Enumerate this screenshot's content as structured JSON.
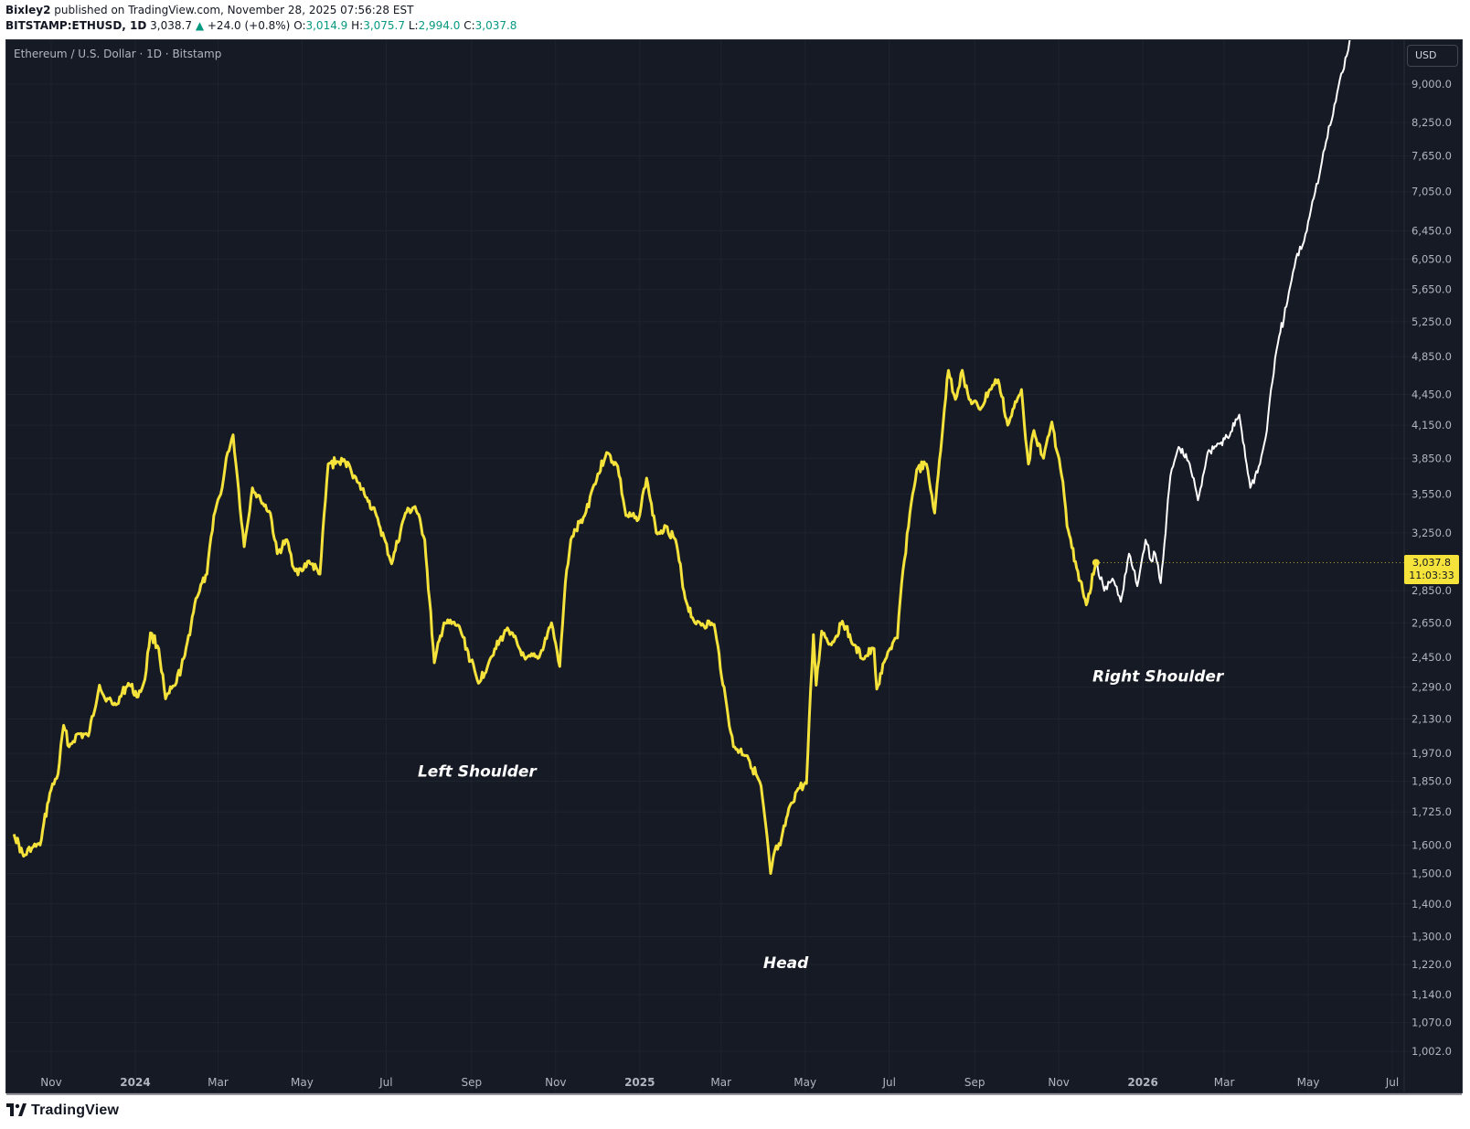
{
  "header": {
    "author": "Bixley2",
    "published_text": "published on TradingView.com, November 28, 2025 07:56:28 EST"
  },
  "ohlc": {
    "symbol": "BITSTAMP:ETHUSD, 1D",
    "last": "3,038.7",
    "change": "+24.0 (+0.8%)",
    "o_label": "O:",
    "o": "3,014.9",
    "h_label": "H:",
    "h": "3,075.7",
    "l_label": "L:",
    "l": "2,994.0",
    "c_label": "C:",
    "c": "3,037.8"
  },
  "legend": {
    "title": "Ethereum / U.S. Dollar · 1D · Bitstamp"
  },
  "currency_button": "USD",
  "price_tag": {
    "price": "3,037.8",
    "countdown": "11:03:33"
  },
  "brand": {
    "name": "TradingView"
  },
  "colors": {
    "background": "#161a25",
    "grid": "#1f232e",
    "history_line": "#f5e33b",
    "projection_line": "#ffffff",
    "axis_text": "#b2b5be",
    "up": "#089981"
  },
  "chart_data": {
    "type": "line",
    "scale": "log",
    "grid": true,
    "title": "",
    "xlabel": "",
    "ylabel": "",
    "ylim": [
      960,
      11000
    ],
    "y_ticks": [
      "9,000.0",
      "8,250.0",
      "7,650.0",
      "7,050.0",
      "6,450.0",
      "6,050.0",
      "5,650.0",
      "5,250.0",
      "4,850.0",
      "4,450.0",
      "4,150.0",
      "3,850.0",
      "3,550.0",
      "3,250.0",
      "2,850.0",
      "2,650.0",
      "2,450.0",
      "2,290.0",
      "2,130.0",
      "1,970.0",
      "1,850.0",
      "1,725.0",
      "1,600.0",
      "1,500.0",
      "1,400.0",
      "1,300.0",
      "1,220.0",
      "1,140.0",
      "1,070.0",
      "1,002.0"
    ],
    "x_ticks": [
      {
        "label": "Nov",
        "date": "2023-11-01"
      },
      {
        "label": "2024",
        "date": "2024-01-01"
      },
      {
        "label": "Mar",
        "date": "2024-03-01"
      },
      {
        "label": "May",
        "date": "2024-05-01"
      },
      {
        "label": "Jul",
        "date": "2024-07-01"
      },
      {
        "label": "Sep",
        "date": "2024-09-01"
      },
      {
        "label": "Nov",
        "date": "2024-11-01"
      },
      {
        "label": "2025",
        "date": "2025-01-01"
      },
      {
        "label": "Mar",
        "date": "2025-03-01"
      },
      {
        "label": "May",
        "date": "2025-05-01"
      },
      {
        "label": "Jul",
        "date": "2025-07-01"
      },
      {
        "label": "Sep",
        "date": "2025-09-01"
      },
      {
        "label": "Nov",
        "date": "2025-11-01"
      },
      {
        "label": "2026",
        "date": "2026-01-01"
      },
      {
        "label": "Mar",
        "date": "2026-03-01"
      },
      {
        "label": "May",
        "date": "2026-05-01"
      },
      {
        "label": "Jul",
        "date": "2026-07-01"
      }
    ],
    "series": [
      {
        "role": "history",
        "x": [
          "2023-10-05",
          "2023-10-12",
          "2023-10-18",
          "2023-10-24",
          "2023-10-31",
          "2023-11-06",
          "2023-11-10",
          "2023-11-14",
          "2023-11-20",
          "2023-11-28",
          "2023-12-06",
          "2023-12-10",
          "2023-12-18",
          "2023-12-27",
          "2024-01-03",
          "2024-01-08",
          "2024-01-12",
          "2024-01-18",
          "2024-01-23",
          "2024-01-30",
          "2024-02-06",
          "2024-02-14",
          "2024-02-22",
          "2024-02-27",
          "2024-03-04",
          "2024-03-08",
          "2024-03-12",
          "2024-03-15",
          "2024-03-20",
          "2024-03-26",
          "2024-04-01",
          "2024-04-08",
          "2024-04-13",
          "2024-04-20",
          "2024-04-25",
          "2024-05-01",
          "2024-05-06",
          "2024-05-14",
          "2024-05-20",
          "2024-05-27",
          "2024-06-04",
          "2024-06-10",
          "2024-06-17",
          "2024-06-24",
          "2024-07-05",
          "2024-07-15",
          "2024-07-22",
          "2024-07-29",
          "2024-08-05",
          "2024-08-12",
          "2024-08-23",
          "2024-09-06",
          "2024-09-15",
          "2024-09-27",
          "2024-10-10",
          "2024-10-20",
          "2024-10-29",
          "2024-11-04",
          "2024-11-08",
          "2024-11-12",
          "2024-11-22",
          "2024-11-28",
          "2024-12-08",
          "2024-12-16",
          "2024-12-22",
          "2024-12-31",
          "2025-01-06",
          "2025-01-13",
          "2025-01-20",
          "2025-01-27",
          "2025-02-03",
          "2025-02-10",
          "2025-02-24",
          "2025-03-05",
          "2025-03-10",
          "2025-03-20",
          "2025-03-30",
          "2025-04-06",
          "2025-04-09",
          "2025-04-13",
          "2025-04-20",
          "2025-04-26",
          "2025-05-02",
          "2025-05-07",
          "2025-05-09",
          "2025-05-13",
          "2025-05-20",
          "2025-05-28",
          "2025-06-05",
          "2025-06-12",
          "2025-06-20",
          "2025-06-22",
          "2025-06-30",
          "2025-07-07",
          "2025-07-10",
          "2025-07-16",
          "2025-07-21",
          "2025-07-28",
          "2025-08-03",
          "2025-08-10",
          "2025-08-13",
          "2025-08-18",
          "2025-08-23",
          "2025-08-28",
          "2025-09-05",
          "2025-09-12",
          "2025-09-18",
          "2025-09-25",
          "2025-10-05",
          "2025-10-10",
          "2025-10-14",
          "2025-10-21",
          "2025-10-27",
          "2025-11-04",
          "2025-11-07",
          "2025-11-14",
          "2025-11-21",
          "2025-11-28"
        ],
        "y": [
          1640,
          1560,
          1590,
          1600,
          1800,
          1880,
          2100,
          2000,
          2060,
          2050,
          2300,
          2230,
          2200,
          2310,
          2240,
          2330,
          2590,
          2500,
          2230,
          2300,
          2460,
          2800,
          2960,
          3380,
          3600,
          3900,
          4060,
          3700,
          3150,
          3600,
          3500,
          3400,
          3100,
          3200,
          3000,
          2980,
          3050,
          2960,
          3800,
          3820,
          3800,
          3650,
          3520,
          3380,
          3030,
          3400,
          3450,
          3200,
          2420,
          2650,
          2630,
          2310,
          2450,
          2620,
          2440,
          2450,
          2650,
          2400,
          2900,
          3200,
          3380,
          3600,
          3900,
          3780,
          3380,
          3350,
          3680,
          3250,
          3300,
          3200,
          2800,
          2650,
          2640,
          2200,
          2000,
          1960,
          1830,
          1500,
          1580,
          1600,
          1750,
          1820,
          1840,
          2580,
          2300,
          2600,
          2520,
          2660,
          2520,
          2440,
          2500,
          2280,
          2480,
          2560,
          2900,
          3400,
          3750,
          3800,
          3400,
          4300,
          4700,
          4400,
          4700,
          4400,
          4300,
          4500,
          4600,
          4150,
          4500,
          3800,
          4100,
          3850,
          4180,
          3650,
          3300,
          3000,
          2760,
          3037.8
        ]
      },
      {
        "role": "projection",
        "x": [
          "2025-11-28",
          "2025-12-04",
          "2025-12-10",
          "2025-12-16",
          "2025-12-22",
          "2025-12-28",
          "2026-01-03",
          "2026-01-07",
          "2026-01-10",
          "2026-01-14",
          "2026-01-21",
          "2026-01-27",
          "2026-02-04",
          "2026-02-10",
          "2026-02-17",
          "2026-02-25",
          "2026-03-05",
          "2026-03-12",
          "2026-03-20",
          "2026-03-27",
          "2026-04-01",
          "2026-04-04",
          "2026-04-09",
          "2026-04-16",
          "2026-04-22",
          "2026-04-28",
          "2026-05-04",
          "2026-05-09",
          "2026-05-14",
          "2026-05-19",
          "2026-05-24",
          "2026-05-29",
          "2026-06-04",
          "2026-06-08"
        ],
        "y": [
          3037.8,
          2850,
          2930,
          2780,
          3100,
          2880,
          3200,
          3050,
          3100,
          2900,
          3700,
          3950,
          3800,
          3500,
          3900,
          3980,
          4050,
          4250,
          3600,
          3800,
          4100,
          4500,
          5000,
          5500,
          6050,
          6300,
          6900,
          7300,
          7900,
          8400,
          9100,
          9600,
          10600,
          11200
        ]
      }
    ],
    "annotations": [
      {
        "text": "Left Shoulder",
        "x": "2024-09-05",
        "y": 1870
      },
      {
        "text": "Head",
        "x": "2025-04-17",
        "y": 1210
      },
      {
        "text": "Right Shoulder",
        "x": "2026-01-12",
        "y": 2320
      }
    ],
    "last_price": 3037.8
  }
}
